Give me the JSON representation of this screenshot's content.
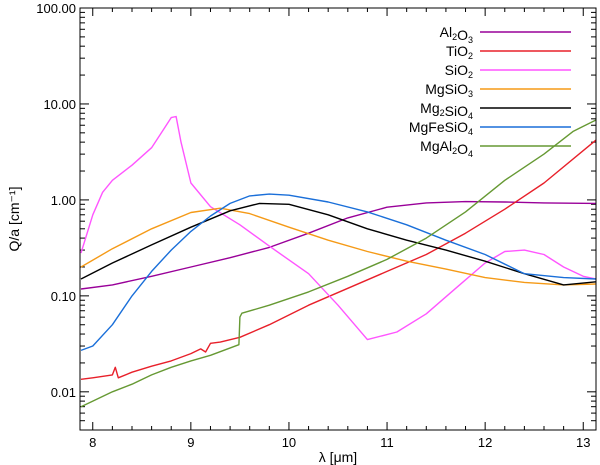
{
  "chart_data": {
    "type": "line",
    "title": "",
    "xlabel": "λ [μm]",
    "ylabel": "Q/a [cm⁻¹]",
    "xlim": [
      7.87,
      13.13
    ],
    "ylim": [
      0.004,
      100
    ],
    "yscale": "log",
    "legend_position": "top-right",
    "x_ticks": [
      8,
      9,
      10,
      11,
      12,
      13
    ],
    "x_tick_labels": [
      "8",
      "9",
      "10",
      "11",
      "12",
      "13"
    ],
    "y_ticks": [
      0.01,
      0.1,
      1,
      10,
      100
    ],
    "y_tick_labels": [
      "0.01",
      "0.10",
      "1.00",
      "10.00",
      "100.00"
    ],
    "series": [
      {
        "name": "Al₂O₃",
        "base": "Al",
        "sub1": "2",
        "mid": "O",
        "sub2": "3",
        "tail": "",
        "color": "#990099",
        "points": [
          [
            7.88,
            0.118
          ],
          [
            8.2,
            0.13
          ],
          [
            8.6,
            0.16
          ],
          [
            9.0,
            0.2
          ],
          [
            9.4,
            0.25
          ],
          [
            9.8,
            0.32
          ],
          [
            10.2,
            0.45
          ],
          [
            10.6,
            0.65
          ],
          [
            11.0,
            0.84
          ],
          [
            11.4,
            0.93
          ],
          [
            11.8,
            0.96
          ],
          [
            12.2,
            0.95
          ],
          [
            12.6,
            0.93
          ],
          [
            13.13,
            0.92
          ]
        ]
      },
      {
        "name": "TiO₂",
        "base": "TiO",
        "sub1": "2",
        "mid": "",
        "sub2": "",
        "tail": "",
        "color": "#e8202a",
        "points": [
          [
            7.88,
            0.0135
          ],
          [
            8.0,
            0.014
          ],
          [
            8.2,
            0.015
          ],
          [
            8.23,
            0.018
          ],
          [
            8.26,
            0.014
          ],
          [
            8.4,
            0.016
          ],
          [
            8.6,
            0.0185
          ],
          [
            8.8,
            0.021
          ],
          [
            9.0,
            0.025
          ],
          [
            9.1,
            0.028
          ],
          [
            9.15,
            0.026
          ],
          [
            9.2,
            0.032
          ],
          [
            9.3,
            0.033
          ],
          [
            9.5,
            0.037
          ],
          [
            9.8,
            0.05
          ],
          [
            10.2,
            0.08
          ],
          [
            10.6,
            0.12
          ],
          [
            11.0,
            0.18
          ],
          [
            11.4,
            0.27
          ],
          [
            11.8,
            0.45
          ],
          [
            12.2,
            0.8
          ],
          [
            12.6,
            1.5
          ],
          [
            13.13,
            4.2
          ]
        ]
      },
      {
        "name": "SiO₂",
        "base": "SiO",
        "sub1": "2",
        "mid": "",
        "sub2": "",
        "tail": "",
        "color": "#ff55ff",
        "points": [
          [
            7.88,
            0.28
          ],
          [
            8.0,
            0.7
          ],
          [
            8.1,
            1.2
          ],
          [
            8.2,
            1.6
          ],
          [
            8.4,
            2.3
          ],
          [
            8.6,
            3.5
          ],
          [
            8.7,
            5.0
          ],
          [
            8.8,
            7.2
          ],
          [
            8.85,
            7.4
          ],
          [
            8.9,
            4.0
          ],
          [
            9.0,
            1.5
          ],
          [
            9.2,
            0.85
          ],
          [
            9.5,
            0.55
          ],
          [
            9.8,
            0.33
          ],
          [
            10.2,
            0.17
          ],
          [
            10.5,
            0.08
          ],
          [
            10.8,
            0.035
          ],
          [
            11.1,
            0.042
          ],
          [
            11.4,
            0.065
          ],
          [
            11.7,
            0.12
          ],
          [
            12.0,
            0.22
          ],
          [
            12.2,
            0.29
          ],
          [
            12.4,
            0.3
          ],
          [
            12.6,
            0.27
          ],
          [
            12.8,
            0.2
          ],
          [
            13.0,
            0.16
          ],
          [
            13.13,
            0.15
          ]
        ]
      },
      {
        "name": "MgSiO₃",
        "base": "MgSiO",
        "sub1": "3",
        "mid": "",
        "sub2": "",
        "tail": "",
        "color": "#f59a17",
        "points": [
          [
            7.88,
            0.2
          ],
          [
            8.2,
            0.31
          ],
          [
            8.6,
            0.5
          ],
          [
            9.0,
            0.74
          ],
          [
            9.3,
            0.82
          ],
          [
            9.6,
            0.72
          ],
          [
            10.0,
            0.52
          ],
          [
            10.4,
            0.38
          ],
          [
            10.8,
            0.29
          ],
          [
            11.2,
            0.23
          ],
          [
            11.6,
            0.19
          ],
          [
            12.0,
            0.155
          ],
          [
            12.4,
            0.138
          ],
          [
            12.8,
            0.13
          ],
          [
            13.13,
            0.133
          ]
        ]
      },
      {
        "name": "Mg₂SiO₄",
        "base": "Mg",
        "sub1": "2",
        "mid": "SiO",
        "sub2": "4",
        "tail": "",
        "color": "#000000",
        "points": [
          [
            7.88,
            0.15
          ],
          [
            8.2,
            0.22
          ],
          [
            8.6,
            0.34
          ],
          [
            9.0,
            0.52
          ],
          [
            9.4,
            0.77
          ],
          [
            9.7,
            0.92
          ],
          [
            10.0,
            0.9
          ],
          [
            10.4,
            0.7
          ],
          [
            10.8,
            0.5
          ],
          [
            11.2,
            0.38
          ],
          [
            11.6,
            0.3
          ],
          [
            12.0,
            0.23
          ],
          [
            12.4,
            0.17
          ],
          [
            12.8,
            0.13
          ],
          [
            13.13,
            0.14
          ]
        ]
      },
      {
        "name": "MgFeSiO₄",
        "base": "MgFeSiO",
        "sub1": "4",
        "mid": "",
        "sub2": "",
        "tail": "",
        "color": "#1a6fd9",
        "points": [
          [
            7.88,
            0.027
          ],
          [
            8.0,
            0.03
          ],
          [
            8.2,
            0.05
          ],
          [
            8.4,
            0.1
          ],
          [
            8.6,
            0.18
          ],
          [
            8.8,
            0.3
          ],
          [
            9.0,
            0.47
          ],
          [
            9.2,
            0.68
          ],
          [
            9.4,
            0.92
          ],
          [
            9.6,
            1.1
          ],
          [
            9.8,
            1.15
          ],
          [
            10.0,
            1.12
          ],
          [
            10.4,
            0.95
          ],
          [
            10.8,
            0.75
          ],
          [
            11.2,
            0.55
          ],
          [
            11.6,
            0.38
          ],
          [
            12.0,
            0.27
          ],
          [
            12.4,
            0.17
          ],
          [
            12.8,
            0.155
          ],
          [
            13.13,
            0.15
          ]
        ]
      },
      {
        "name": "MgAl₂O₄",
        "base": "MgAl",
        "sub1": "2",
        "mid": "O",
        "sub2": "4",
        "tail": "",
        "color": "#669933",
        "points": [
          [
            7.88,
            0.007
          ],
          [
            8.0,
            0.008
          ],
          [
            8.2,
            0.01
          ],
          [
            8.4,
            0.012
          ],
          [
            8.6,
            0.015
          ],
          [
            8.8,
            0.018
          ],
          [
            9.0,
            0.021
          ],
          [
            9.2,
            0.024
          ],
          [
            9.49,
            0.031
          ],
          [
            9.5,
            0.06
          ],
          [
            9.52,
            0.066
          ],
          [
            9.8,
            0.08
          ],
          [
            10.2,
            0.11
          ],
          [
            10.6,
            0.16
          ],
          [
            11.0,
            0.24
          ],
          [
            11.4,
            0.4
          ],
          [
            11.8,
            0.75
          ],
          [
            12.2,
            1.6
          ],
          [
            12.6,
            3.0
          ],
          [
            12.9,
            5.2
          ],
          [
            13.13,
            6.8
          ]
        ]
      }
    ]
  }
}
